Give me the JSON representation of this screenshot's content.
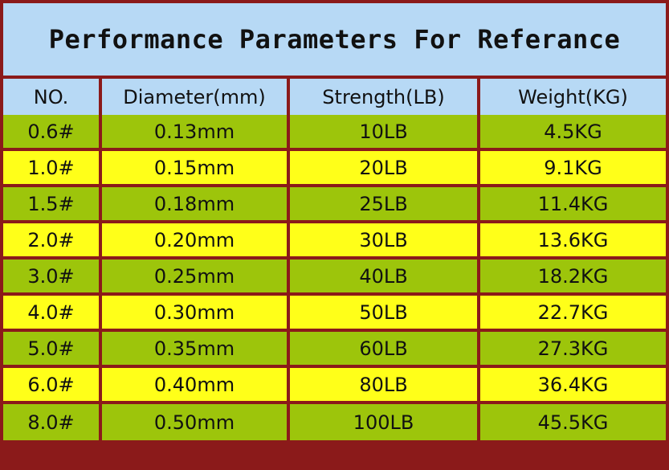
{
  "title": "Performance Parameters For Referance",
  "colors": {
    "header_bg": "#B7D9F5",
    "row_green": "#9DC50B",
    "row_yellow": "#FFFF19",
    "border": "#8B1A1A"
  },
  "table": {
    "headers": [
      "NO.",
      "Diameter(mm)",
      "Strength(LB)",
      "Weight(KG)"
    ],
    "rows": [
      [
        "0.6#",
        "0.13mm",
        "10LB",
        "4.5KG"
      ],
      [
        "1.0#",
        "0.15mm",
        "20LB",
        "9.1KG"
      ],
      [
        "1.5#",
        "0.18mm",
        "25LB",
        "11.4KG"
      ],
      [
        "2.0#",
        "0.20mm",
        "30LB",
        "13.6KG"
      ],
      [
        "3.0#",
        "0.25mm",
        "40LB",
        "18.2KG"
      ],
      [
        "4.0#",
        "0.30mm",
        "50LB",
        "22.7KG"
      ],
      [
        "5.0#",
        "0.35mm",
        "60LB",
        "27.3KG"
      ],
      [
        "6.0#",
        "0.40mm",
        "80LB",
        "36.4KG"
      ],
      [
        "8.0#",
        "0.50mm",
        "100LB",
        "45.5KG"
      ]
    ]
  }
}
